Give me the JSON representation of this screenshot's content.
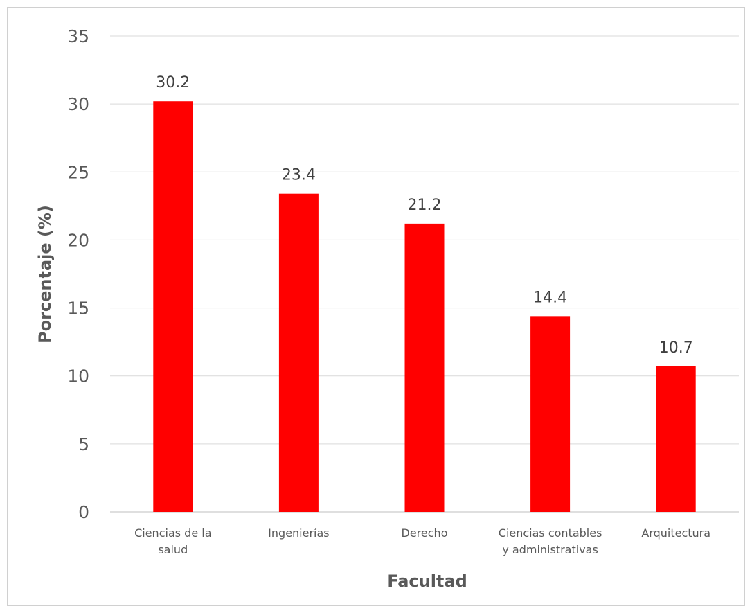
{
  "chart_data": {
    "type": "bar",
    "title": "",
    "xlabel": "Facultad",
    "ylabel": "Porcentaje (%)",
    "ylim": [
      0,
      35
    ],
    "yticks": [
      0,
      5,
      10,
      15,
      20,
      25,
      30,
      35
    ],
    "grid": true,
    "legend": "none",
    "categories": [
      [
        "Ciencias de la",
        "salud"
      ],
      [
        "Ingenierías"
      ],
      [
        "Derecho"
      ],
      [
        "Ciencias contables",
        "y administrativas"
      ],
      [
        "Arquitectura"
      ]
    ],
    "values": [
      30.2,
      23.4,
      21.2,
      14.4,
      10.7
    ],
    "data_labels": [
      "30.2",
      "23.4",
      "21.2",
      "14.4",
      "10.7"
    ],
    "colors": {
      "bar": "#ff0000",
      "grid": "#d9d9d9",
      "axis": "#bfbfbf",
      "text": "#595959"
    }
  }
}
